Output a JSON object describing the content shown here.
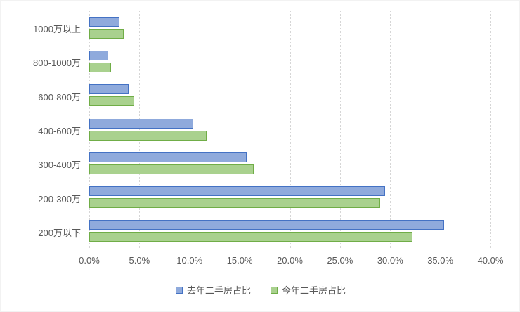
{
  "chart_data": {
    "type": "bar",
    "orientation": "horizontal",
    "title": "",
    "xlabel": "",
    "ylabel": "",
    "x_max": 40,
    "x_tick_step": 5,
    "x_ticks": [
      "0.0%",
      "5.0%",
      "10.0%",
      "15.0%",
      "20.0%",
      "25.0%",
      "30.0%",
      "35.0%",
      "40.0%"
    ],
    "grid": "vertical-dotted",
    "legend_position": "bottom",
    "categories_top_to_bottom": [
      "1000万以上",
      "800-1000万",
      "600-800万",
      "400-600万",
      "300-400万",
      "200-300万",
      "200万以下"
    ],
    "series": [
      {
        "name": "去年二手房占比",
        "fill_color": "#8faadc",
        "border_color": "#4472c4",
        "values": [
          3.0,
          1.9,
          3.9,
          10.4,
          15.7,
          29.5,
          35.4
        ]
      },
      {
        "name": "今年二手房占比",
        "fill_color": "#a9d18e",
        "border_color": "#70ad47",
        "values": [
          3.4,
          2.2,
          4.5,
          11.7,
          16.4,
          29.0,
          32.2
        ]
      }
    ],
    "colors": {
      "axis_text": "#595959",
      "grid_line": "#d6d6d6",
      "background": "#ffffff"
    }
  }
}
